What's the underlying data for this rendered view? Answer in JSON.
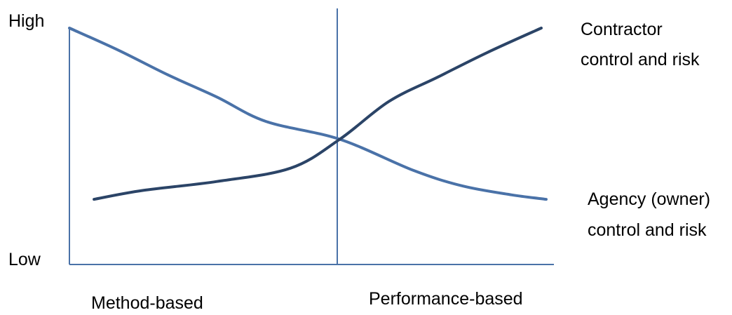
{
  "chart_data": {
    "type": "line",
    "title": "",
    "xlabel": "",
    "ylabel": "",
    "x_categories": [
      "Method-based",
      "Performance-based"
    ],
    "y_range_labels": [
      "High",
      "Low"
    ],
    "series": [
      {
        "name": "Contractor control and risk",
        "name_lines": [
          "Contractor",
          "control and risk"
        ],
        "color": "#2b4467",
        "points": [
          [
            0.05,
            0.23
          ],
          [
            0.15,
            0.27
          ],
          [
            0.3,
            0.31
          ],
          [
            0.45,
            0.37
          ],
          [
            0.55,
            0.5
          ],
          [
            0.65,
            0.67
          ],
          [
            0.75,
            0.78
          ],
          [
            0.85,
            0.89
          ],
          [
            0.96,
            1.0
          ]
        ]
      },
      {
        "name": "Agency (owner) control and risk",
        "name_lines": [
          "Agency (owner)",
          "control and risk"
        ],
        "color": "#4a72a8",
        "points": [
          [
            0.0,
            1.0
          ],
          [
            0.1,
            0.9
          ],
          [
            0.2,
            0.79
          ],
          [
            0.3,
            0.69
          ],
          [
            0.4,
            0.58
          ],
          [
            0.55,
            0.5
          ],
          [
            0.7,
            0.36
          ],
          [
            0.8,
            0.29
          ],
          [
            0.9,
            0.25
          ],
          [
            0.97,
            0.23
          ]
        ]
      }
    ],
    "divider_x": 0.55,
    "line_color": "#4a72a8"
  }
}
